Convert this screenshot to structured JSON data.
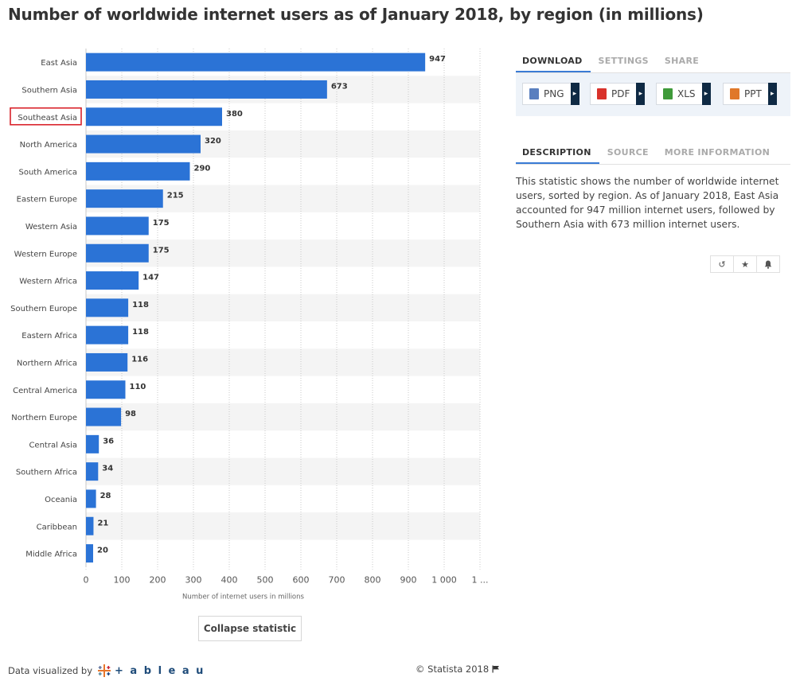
{
  "title": "Number of worldwide internet users as of January 2018, by region (in millions)",
  "chart_data": {
    "type": "bar",
    "orientation": "horizontal",
    "categories": [
      "East Asia",
      "Southern Asia",
      "Southeast Asia",
      "North America",
      "South America",
      "Eastern Europe",
      "Western Asia",
      "Western Europe",
      "Western Africa",
      "Southern Europe",
      "Eastern Africa",
      "Northern Africa",
      "Central America",
      "Northern Europe",
      "Central Asia",
      "Southern Africa",
      "Oceania",
      "Caribbean",
      "Middle Africa"
    ],
    "values": [
      947,
      673,
      380,
      320,
      290,
      215,
      175,
      175,
      147,
      118,
      118,
      116,
      110,
      98,
      36,
      34,
      28,
      21,
      20
    ],
    "highlighted_category": "Southeast Asia",
    "xlabel": "Number of internet users in millions",
    "xlim": [
      0,
      1100
    ],
    "xticks": [
      "0",
      "100",
      "200",
      "300",
      "400",
      "500",
      "600",
      "700",
      "800",
      "900",
      "1 000",
      "1 ..."
    ],
    "grid": true,
    "bar_color": "#2b73d6",
    "highlight_box_color": "#d9222a"
  },
  "download": {
    "tabs": [
      "DOWNLOAD",
      "SETTINGS",
      "SHARE"
    ],
    "buttons": [
      {
        "label": "PNG",
        "icon": "png-file-icon",
        "color": "#5a7fbf"
      },
      {
        "label": "PDF",
        "icon": "pdf-file-icon",
        "color": "#d9322b"
      },
      {
        "label": "XLS",
        "icon": "xls-file-icon",
        "color": "#3f9a3a"
      },
      {
        "label": "PPT",
        "icon": "ppt-file-icon",
        "color": "#e0782a"
      }
    ]
  },
  "description": {
    "tabs": [
      "DESCRIPTION",
      "SOURCE",
      "MORE INFORMATION"
    ],
    "text": "This statistic shows the number of worldwide internet users, sorted by region. As of January 2018, East Asia accounted for 947 million internet users, followed by Southern Asia with 673 million internet users."
  },
  "actions": {
    "icons": [
      "history-icon",
      "star-icon",
      "bell-icon"
    ]
  },
  "collapse_label": "Collapse statistic",
  "footer": {
    "visualized_by": "Data visualized by",
    "tableau": "+ a b l e a u",
    "copyright": "© Statista 2018"
  }
}
